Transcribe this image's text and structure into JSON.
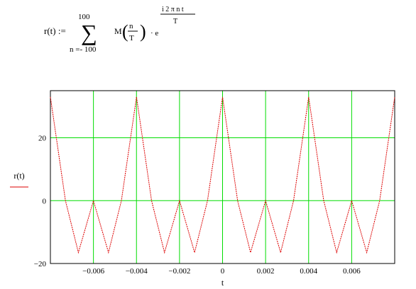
{
  "formula": {
    "lhs": "r(t) :=",
    "sum_upper": "100",
    "sum_lower": "n =- 100",
    "coef_name": "M",
    "frac_num": "n",
    "frac_den": "T",
    "mult_e": "· e",
    "exp_num": "i 2 π n t",
    "exp_den": "T"
  },
  "chart_data": {
    "type": "line",
    "title": "",
    "xlabel": "t",
    "ylabel": "r(t)",
    "xlim": [
      -0.008,
      0.008
    ],
    "ylim": [
      -20,
      35
    ],
    "x_ticks": [
      -0.006,
      -0.004,
      -0.002,
      0,
      0.002,
      0.004,
      0.006
    ],
    "x_tick_labels": [
      "−0.006",
      "−0.004",
      "−0.002",
      "0",
      "0.002",
      "0.004",
      "0.006"
    ],
    "y_ticks": [
      -20,
      0,
      20
    ],
    "y_tick_labels": [
      "−20",
      "0",
      "20"
    ],
    "grid": true,
    "grid_color": "#00dd00",
    "series": [
      {
        "color": "#dd0000",
        "x": [
          -0.008,
          -0.0073,
          -0.0067,
          -0.006,
          -0.0053,
          -0.0047,
          -0.004,
          -0.0033,
          -0.0027,
          -0.002,
          -0.0013,
          -0.0007,
          0,
          0.0007,
          0.0013,
          0.002,
          0.0027,
          0.0033,
          0.004,
          0.0047,
          0.0053,
          0.006,
          0.0067,
          0.0073,
          0.008
        ],
        "y": [
          33,
          0,
          -16.5,
          0,
          -16.5,
          0,
          33,
          0,
          -16.5,
          0,
          -16.5,
          0,
          33,
          0,
          -16.5,
          0,
          -16.5,
          0,
          33,
          0,
          -16.5,
          0,
          -16.5,
          0,
          33
        ]
      }
    ]
  }
}
